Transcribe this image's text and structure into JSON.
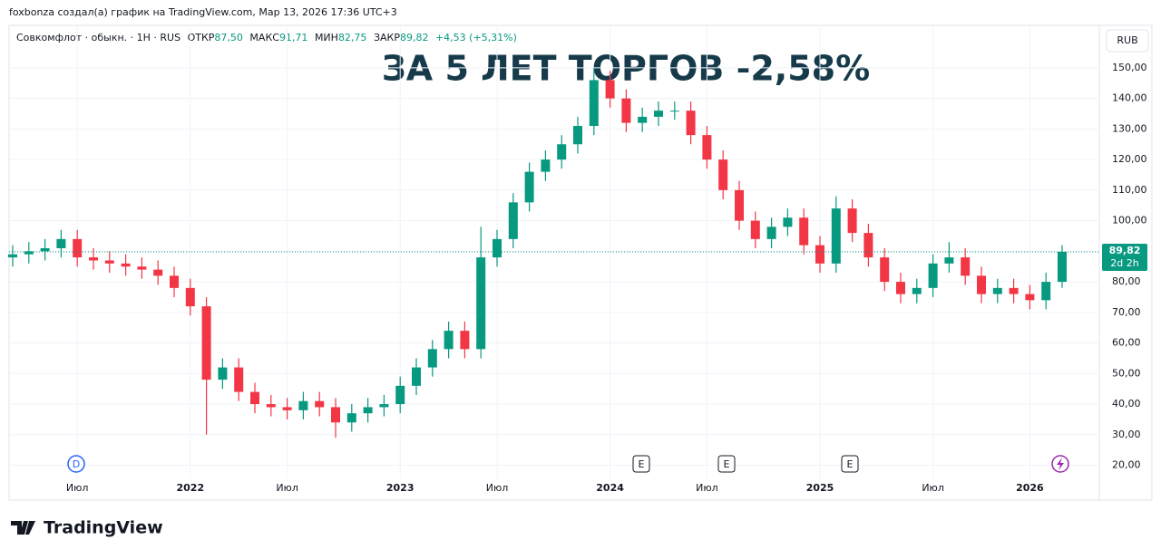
{
  "attribution": "foxbonza создал(а) график на TradingView.com, Мар 13, 2026 17:36 UTC+3",
  "legend": {
    "symbol": "Совкомфлот · обыкн. · 1H · RUS",
    "open_label": "ОТКР",
    "open": "87,50",
    "high_label": "МАКС",
    "high": "91,71",
    "low_label": "МИН",
    "low": "82,75",
    "close_label": "ЗАКР",
    "close": "89,82",
    "change": "+4,53 (+5,31%)"
  },
  "currency": "RUB",
  "events": [
    "D",
    "E",
    "E",
    "E"
  ],
  "brand": "TradingView",
  "chart_data": {
    "type": "candlestick",
    "title": "ЗА 5 ЛЕТ ТОРГОВ -2,58%",
    "categories": [
      null,
      null,
      null,
      null,
      "Июл",
      null,
      null,
      null,
      null,
      null,
      null,
      "2022",
      null,
      null,
      null,
      null,
      null,
      "Июл",
      null,
      null,
      null,
      null,
      null,
      null,
      "2023",
      null,
      null,
      null,
      null,
      null,
      "Июл",
      null,
      null,
      null,
      null,
      null,
      null,
      "2024",
      null,
      null,
      null,
      null,
      null,
      "Июл",
      null,
      null,
      null,
      null,
      null,
      null,
      "2025",
      null,
      null,
      null,
      null,
      null,
      null,
      "Июл",
      null,
      null,
      null,
      null,
      null,
      "2026",
      null,
      null
    ],
    "open": [
      88,
      89,
      90,
      91,
      94,
      88,
      87,
      86,
      85,
      84,
      82,
      78,
      72,
      48,
      52,
      44,
      40,
      39,
      38,
      41,
      39,
      34,
      37,
      39,
      40,
      46,
      52,
      58,
      64,
      58,
      88,
      94,
      106,
      116,
      120,
      125,
      131,
      146,
      140,
      132,
      134,
      136,
      136,
      128,
      120,
      110,
      100,
      94,
      98,
      101,
      92,
      86,
      104,
      96,
      88,
      80,
      76,
      78,
      86,
      88,
      82,
      76,
      78,
      76,
      74,
      80
    ],
    "high": [
      92,
      93,
      94,
      97,
      97,
      91,
      90,
      89,
      88,
      87,
      85,
      81,
      75,
      55,
      55,
      47,
      43,
      42,
      44,
      44,
      42,
      40,
      42,
      43,
      49,
      55,
      61,
      67,
      67,
      98,
      97,
      109,
      119,
      123,
      128,
      134,
      150,
      149,
      143,
      137,
      139,
      139,
      139,
      131,
      123,
      113,
      103,
      101,
      104,
      104,
      95,
      108,
      107,
      99,
      91,
      83,
      81,
      89,
      93,
      91,
      85,
      81,
      81,
      79,
      83,
      92
    ],
    "low": [
      85,
      86,
      87,
      88,
      85,
      84,
      83,
      82,
      81,
      79,
      75,
      69,
      30,
      45,
      41,
      37,
      36,
      35,
      35,
      36,
      29,
      31,
      34,
      36,
      37,
      43,
      49,
      55,
      55,
      55,
      85,
      91,
      103,
      113,
      117,
      122,
      128,
      137,
      129,
      129,
      131,
      133,
      125,
      117,
      107,
      97,
      91,
      91,
      95,
      89,
      83,
      83,
      93,
      85,
      77,
      73,
      73,
      75,
      83,
      79,
      73,
      73,
      73,
      71,
      71,
      78
    ],
    "close": [
      89,
      90,
      91,
      94,
      88,
      87,
      86,
      85,
      84,
      82,
      78,
      72,
      48,
      52,
      44,
      40,
      39,
      38,
      41,
      39,
      34,
      37,
      39,
      40,
      46,
      52,
      58,
      64,
      58,
      88,
      94,
      106,
      116,
      120,
      125,
      131,
      146,
      140,
      132,
      134,
      136,
      136,
      128,
      120,
      110,
      100,
      94,
      98,
      101,
      92,
      86,
      104,
      96,
      88,
      80,
      76,
      78,
      86,
      88,
      82,
      76,
      78,
      76,
      74,
      80,
      89.82
    ],
    "up_color": "#089981",
    "down_color": "#f23645",
    "ylim": [
      8.6,
      163.9
    ],
    "yticks": [
      {
        "value": 20,
        "label": "20,00"
      },
      {
        "value": 30,
        "label": "30,00"
      },
      {
        "value": 40,
        "label": "40,00"
      },
      {
        "value": 50,
        "label": "50,00"
      },
      {
        "value": 60,
        "label": "60,00"
      },
      {
        "value": 70,
        "label": "70,00"
      },
      {
        "value": 80,
        "label": "80,00"
      },
      {
        "value": 90,
        "label": "90,00"
      },
      {
        "value": 100,
        "label": "100,00"
      },
      {
        "value": 110,
        "label": "110,00"
      },
      {
        "value": 120,
        "label": "120,00"
      },
      {
        "value": 130,
        "label": "130,00"
      },
      {
        "value": 140,
        "label": "140,00"
      },
      {
        "value": 150,
        "label": "150,00"
      }
    ],
    "grid": true,
    "last_price": {
      "value": 89.82,
      "label": "89,82",
      "countdown": "2d 2h"
    }
  }
}
